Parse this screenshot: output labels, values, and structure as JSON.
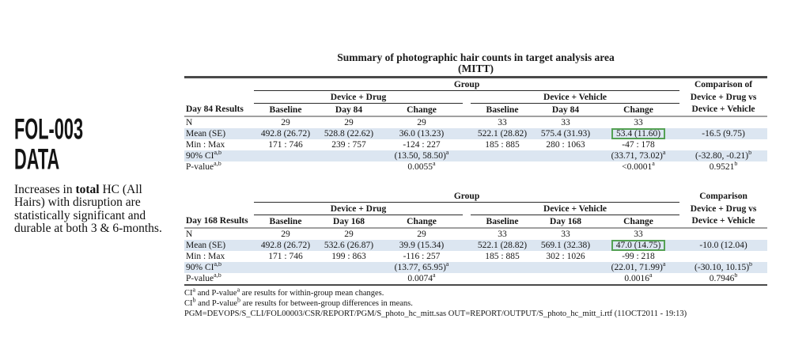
{
  "sidebar": {
    "heading_line1": "FOL-003",
    "heading_line2": "DATA",
    "note": {
      "prefix": "Increases in ",
      "bold": "total",
      "suffix": " HC (All Hairs) with disruption are statistically significant and durable at both 3 & 6-months."
    }
  },
  "table_title": {
    "line1": "Summary of photographic hair counts in target analysis area",
    "line2": "(MITT)"
  },
  "tables": [
    {
      "id": "day84",
      "group_header": "Group",
      "subgroups": [
        "Device + Drug",
        "Device + Vehicle"
      ],
      "comparison_header": [
        "Comparison of",
        "Device + Drug vs",
        "Device + Vehicle"
      ],
      "row_label_header": "Day 84 Results",
      "col_headers": [
        "Baseline",
        "Day 84",
        "Change",
        "Baseline",
        "Day 84",
        "Change"
      ],
      "rows": [
        {
          "label": "N",
          "cells": [
            "29",
            "29",
            "29",
            "33",
            "33",
            "33",
            ""
          ]
        },
        {
          "label": "Mean (SE)",
          "shaded": true,
          "highlight": 5,
          "cells": [
            "492.8 (26.72)",
            "528.8 (22.62)",
            "36.0 (13.23)",
            "522.1 (28.82)",
            "575.4 (31.93)",
            "53.4 (11.60)",
            "-16.5 (9.75)"
          ]
        },
        {
          "label": "Min : Max",
          "cells": [
            "171 : 746",
            "239 : 757",
            "-124 : 227",
            "185 : 885",
            "280 : 1063",
            "-47 : 178",
            ""
          ]
        },
        {
          "label": "90% CI^a,b",
          "shaded": true,
          "cells": [
            "",
            "",
            "(13.50, 58.50)^a",
            "",
            "",
            "(33.71, 73.02)^a",
            "(-32.80, -0.21)^b"
          ]
        },
        {
          "label": "P-value^a,b",
          "cells": [
            "",
            "",
            "0.0055^a",
            "",
            "",
            "<0.0001^a",
            "0.9521^b"
          ]
        }
      ]
    },
    {
      "id": "day168",
      "group_header": "Group",
      "subgroups": [
        "Device + Drug",
        "Device + Vehicle"
      ],
      "comparison_header": [
        "Comparison",
        "Device + Drug vs",
        "Device + Vehicle"
      ],
      "row_label_header": "Day 168 Results",
      "col_headers": [
        "Baseline",
        "Day 168",
        "Change",
        "Baseline",
        "Day 168",
        "Change"
      ],
      "rows": [
        {
          "label": "N",
          "cells": [
            "29",
            "29",
            "29",
            "33",
            "33",
            "33",
            ""
          ]
        },
        {
          "label": "Mean (SE)",
          "shaded": true,
          "highlight": 5,
          "cells": [
            "492.8 (26.72)",
            "532.6 (26.87)",
            "39.9 (15.34)",
            "522.1 (28.82)",
            "569.1 (32.38)",
            "47.0 (14.75)",
            "-10.0 (12.04)"
          ]
        },
        {
          "label": "Min : Max",
          "cells": [
            "171 : 746",
            "199 : 863",
            "-116 : 257",
            "185 : 885",
            "302 : 1026",
            "-99 : 218",
            ""
          ]
        },
        {
          "label": "90% CI^a,b",
          "shaded": true,
          "cells": [
            "",
            "",
            "(13.77, 65.95)^a",
            "",
            "",
            "(22.01, 71.99)^a",
            "(-30.10, 10.15)^b"
          ]
        },
        {
          "label": "P-value^a,b",
          "cells": [
            "",
            "",
            "0.0074^a",
            "",
            "",
            "0.0016^a",
            "0.7946^b"
          ]
        }
      ]
    }
  ],
  "footnotes": [
    "CI^a and P-value^a are results for within-group mean changes.",
    "CI^b and P-value^b are results for between-group differences in means.",
    "PGM=DEVOPS/S_CLI/FOL00003/CSR/REPORT/PGM/S_photo_hc_mitt.sas  OUT=REPORT/OUTPUT/S_photo_hc_mitt_i.rtf (11OCT2011 - 19:13)"
  ],
  "colors": {
    "row_shade": "#dce6f1",
    "highlight_border": "#54a154",
    "rule_dark": "#4a4a4a",
    "rule_gray": "#a0a0a0"
  }
}
